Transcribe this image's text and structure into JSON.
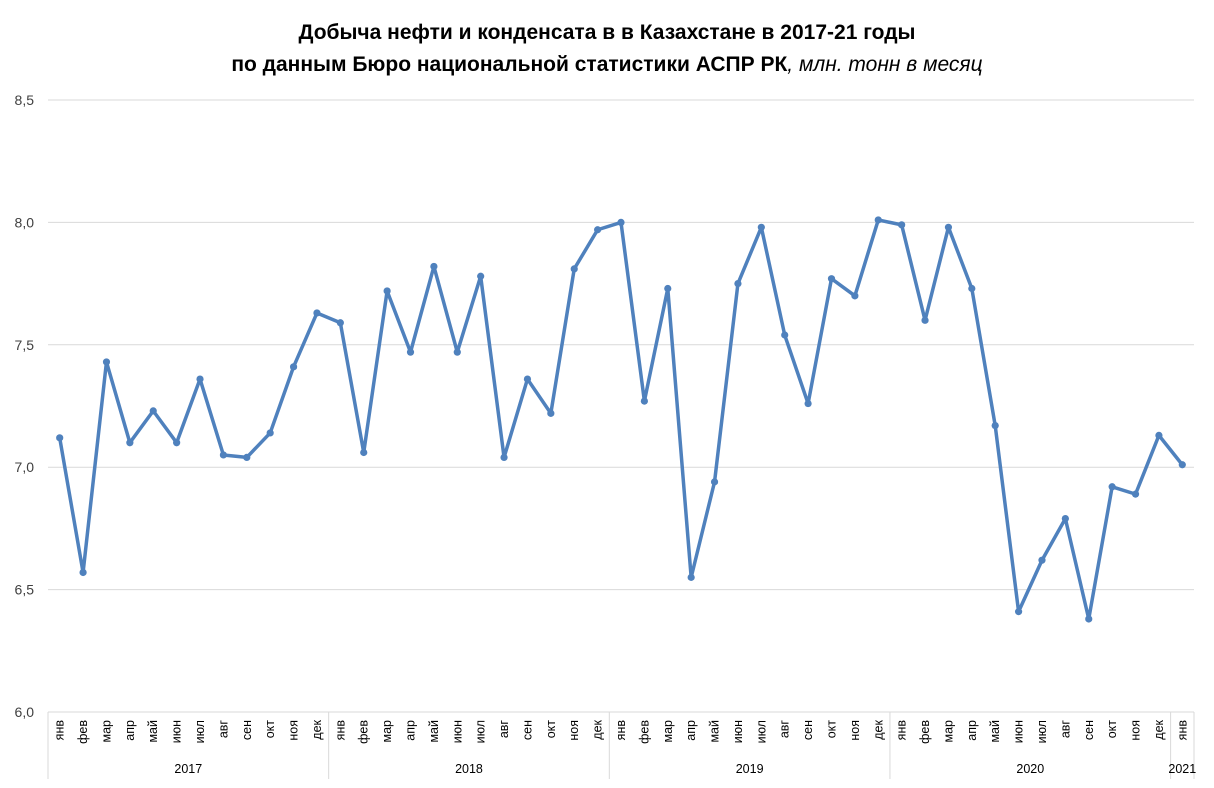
{
  "chart_data": {
    "type": "line",
    "title_line1": "Добыча нефти и конденсата в в Казахстане в 2017-21 годы",
    "title_line2": "по данным Бюро национальной статистики АСПР РК",
    "title_unit": ", млн. тонн в месяц",
    "xlabel": "",
    "ylabel": "",
    "ylim": [
      6.0,
      8.5
    ],
    "yticks": [
      "6,0",
      "6,5",
      "7,0",
      "7,5",
      "8,0",
      "8,5"
    ],
    "ytick_values": [
      6.0,
      6.5,
      7.0,
      7.5,
      8.0,
      8.5
    ],
    "grid": true,
    "legend": "none",
    "line_color": "#4F81BD",
    "categories": [
      "янв",
      "фев",
      "мар",
      "апр",
      "май",
      "июн",
      "июл",
      "авг",
      "сен",
      "окт",
      "ноя",
      "дек",
      "янв",
      "фев",
      "мар",
      "апр",
      "май",
      "июн",
      "июл",
      "авг",
      "сен",
      "окт",
      "ноя",
      "дек",
      "янв",
      "фев",
      "мар",
      "апр",
      "май",
      "июн",
      "июл",
      "авг",
      "сен",
      "окт",
      "ноя",
      "дек",
      "янв",
      "фев",
      "мар",
      "апр",
      "май",
      "июн",
      "июл",
      "авг",
      "сен",
      "окт",
      "ноя",
      "дек",
      "янв"
    ],
    "years": [
      {
        "label": "2017",
        "count": 12
      },
      {
        "label": "2018",
        "count": 12
      },
      {
        "label": "2019",
        "count": 12
      },
      {
        "label": "2020",
        "count": 12
      },
      {
        "label": "2021",
        "count": 1
      }
    ],
    "values": [
      7.12,
      6.57,
      7.43,
      7.1,
      7.23,
      7.1,
      7.36,
      7.05,
      7.04,
      7.14,
      7.41,
      7.63,
      7.59,
      7.06,
      7.72,
      7.47,
      7.82,
      7.47,
      7.78,
      7.04,
      7.36,
      7.22,
      7.81,
      7.97,
      8.0,
      7.27,
      7.73,
      6.55,
      6.94,
      7.75,
      7.98,
      7.54,
      7.26,
      7.77,
      7.7,
      8.01,
      7.99,
      7.6,
      7.98,
      7.73,
      7.17,
      6.41,
      6.62,
      6.79,
      6.38,
      6.92,
      6.89,
      7.13,
      7.01
    ]
  }
}
